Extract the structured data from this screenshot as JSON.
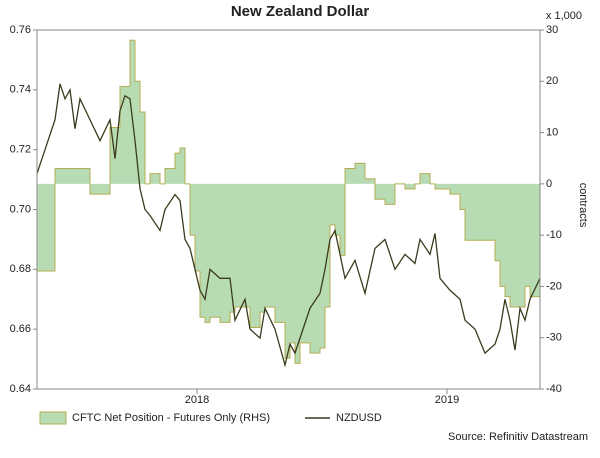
{
  "chart_data": {
    "type": "area-line",
    "title": "New Zealand Dollar",
    "y2_unit": "x 1,000",
    "y2label": "contracts",
    "source": "Source: Refinitiv Datastream",
    "x": [
      2017.36,
      2017.392,
      2017.432,
      2017.452,
      2017.472,
      2017.492,
      2017.512,
      2017.532,
      2017.572,
      2017.612,
      2017.652,
      2017.672,
      2017.692,
      2017.712,
      2017.732,
      2017.752,
      2017.772,
      2017.792,
      2017.812,
      2017.852,
      2017.872,
      2017.912,
      2017.932,
      2017.952,
      2017.972,
      2017.992,
      2018.012,
      2018.032,
      2018.052,
      2018.092,
      2018.132,
      2018.152,
      2018.192,
      2018.212,
      2018.252,
      2018.272,
      2018.312,
      2018.352,
      2018.372,
      2018.392,
      2018.412,
      2018.452,
      2018.492,
      2018.512,
      2018.532,
      2018.552,
      2018.572,
      2018.592,
      2018.632,
      2018.672,
      2018.712,
      2018.752,
      2018.792,
      2018.832,
      2018.872,
      2018.892,
      2018.932,
      2018.952,
      2018.972,
      2019.012,
      2019.052,
      2019.072,
      2019.112,
      2019.152,
      2019.192,
      2019.212,
      2019.232,
      2019.252,
      2019.272,
      2019.292,
      2019.312,
      2019.332,
      2019.372
    ],
    "series": [
      {
        "name": "CFTC Net Position - Futures Only (RHS)",
        "color": "#b7dcb3",
        "stroke": "#b5ad55",
        "axis": "y2",
        "values": [
          -17,
          -17,
          3,
          3,
          3,
          3,
          3,
          3,
          -2,
          -2,
          11,
          11,
          19,
          19,
          28,
          20,
          14,
          0,
          2,
          0,
          3,
          6,
          7,
          0,
          -10,
          -17,
          -26,
          -27,
          -26,
          -27,
          -25,
          -24,
          -24,
          -28,
          -25,
          -24,
          -27,
          -34,
          -31,
          -35,
          -31,
          -33,
          -32,
          -24,
          -8,
          -10,
          -14,
          3,
          4,
          1,
          -3,
          -4,
          0,
          -1,
          0,
          2,
          0,
          -1,
          -1,
          -2,
          -5,
          -11,
          -11,
          -11,
          -15,
          -20,
          -22,
          -24,
          -24,
          -24,
          -20,
          -22,
          -18
        ]
      },
      {
        "name": "NZDUSD",
        "color": "#3b3b1e",
        "values": [
          0.712,
          0.72,
          0.73,
          0.742,
          0.737,
          0.74,
          0.727,
          0.737,
          0.73,
          0.723,
          0.73,
          0.717,
          0.733,
          0.738,
          0.737,
          0.723,
          0.707,
          0.7,
          0.698,
          0.693,
          0.7,
          0.705,
          0.703,
          0.69,
          0.687,
          0.68,
          0.673,
          0.67,
          0.68,
          0.677,
          0.677,
          0.663,
          0.67,
          0.66,
          0.657,
          0.667,
          0.66,
          0.648,
          0.655,
          0.652,
          0.657,
          0.667,
          0.672,
          0.68,
          0.69,
          0.693,
          0.685,
          0.677,
          0.683,
          0.672,
          0.687,
          0.69,
          0.68,
          0.685,
          0.682,
          0.69,
          0.685,
          0.692,
          0.677,
          0.673,
          0.67,
          0.663,
          0.66,
          0.652,
          0.655,
          0.66,
          0.67,
          0.663,
          0.653,
          0.667,
          0.663,
          0.67,
          0.677
        ]
      }
    ],
    "xlim": [
      2017.36,
      2019.372
    ],
    "xticks": [
      2018,
      2019
    ],
    "ylim": [
      0.64,
      0.76
    ],
    "yticks": [
      0.64,
      0.66,
      0.68,
      {
        "value": 0.7,
        "label": "0.70"
      },
      0.72,
      0.74,
      0.76
    ],
    "y2lim": [
      -40,
      30
    ],
    "y2ticks": [
      -40,
      -30,
      -20,
      -10,
      0,
      10,
      20,
      30
    ],
    "grid": false
  }
}
